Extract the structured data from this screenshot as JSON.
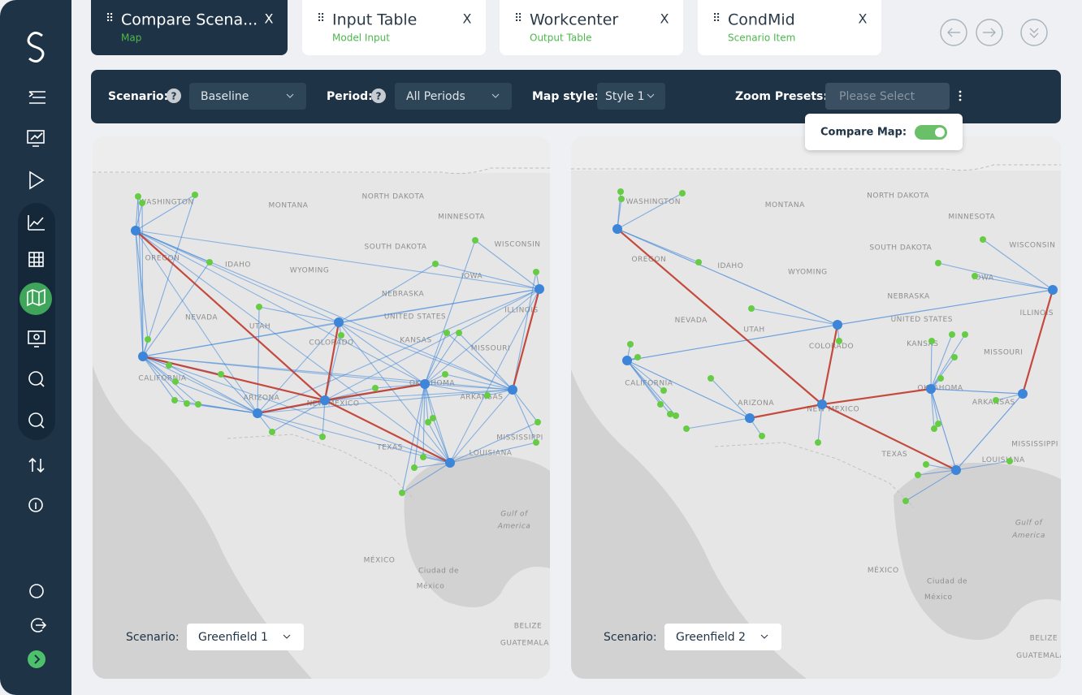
{
  "tabs": [
    {
      "title": "Compare Scena...",
      "subtitle": "Map",
      "close": "X"
    },
    {
      "title": "Input Table",
      "subtitle": "Model Input",
      "close": "X"
    },
    {
      "title": "Workcenter",
      "subtitle": "Output Table",
      "close": "X"
    },
    {
      "title": "CondMid",
      "subtitle": "Scenario Item",
      "close": "X"
    }
  ],
  "toolbar": {
    "scenario_label": "Scenario:",
    "help": "?",
    "scenario_value": "Baseline",
    "period_label": "Period:",
    "period_value": "All Periods",
    "map_style_label": "Map style:",
    "map_style_value": "Style 1",
    "zoom_label": "Zoom Presets:",
    "zoom_placeholder": "Please Select",
    "compare_label": "Compare Map:",
    "compare_map_on": true
  },
  "map_labels": [
    "WASHINGTON",
    "MONTANA",
    "NORTH DAKOTA",
    "MINNESOTA",
    "SOUTH DAKOTA",
    "WISCONSIN",
    "OREGON",
    "IDAHO",
    "WYOMING",
    "NEBRASKA",
    "IOWA",
    "UNITED STATES",
    "ILLINOIS",
    "NEVADA",
    "UTAH",
    "COLORADO",
    "KANSAS",
    "MISSOURI",
    "CALIFORNIA",
    "ARIZONA",
    "NEW MEXICO",
    "OKLAHOMA",
    "ARKANSAS",
    "TEXAS",
    "MISSISSIPPI",
    "LOUISIANA",
    "Gulf of",
    "America",
    "MÉXICO",
    "Ciudad de",
    "México",
    "BELIZE",
    "GUATEMALA HO"
  ],
  "maps": [
    {
      "scenario_label": "Scenario:",
      "scenario_value": "Greenfield 1"
    },
    {
      "scenario_label": "Scenario:",
      "scenario_value": "Greenfield 2"
    }
  ]
}
